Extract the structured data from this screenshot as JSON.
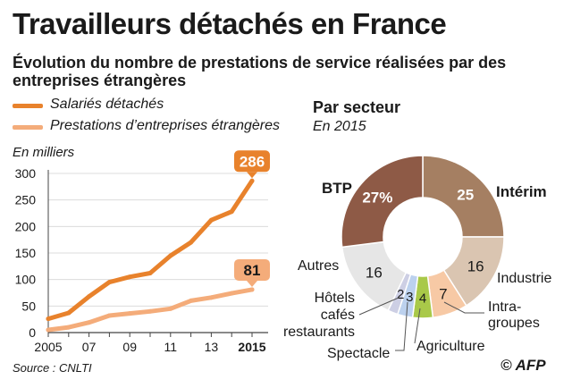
{
  "title": "Travailleurs détachés en France",
  "subtitle": "Évolution du nombre de prestations de service réalisées par des entreprises étrangères",
  "colors": {
    "dark_orange": "#e8822c",
    "light_orange": "#f4ac7a",
    "axis": "#444444",
    "grid": "#dcdcdc"
  },
  "source": "Source : CNLTI",
  "credit": "© AFP",
  "chart_data": [
    {
      "type": "line",
      "ylabel": "En milliers",
      "ylim": [
        0,
        300
      ],
      "yticks": [
        0,
        50,
        100,
        150,
        200,
        250,
        300
      ],
      "xlim": [
        2005,
        2015
      ],
      "x": [
        2005,
        2006,
        2007,
        2008,
        2009,
        2010,
        2011,
        2012,
        2013,
        2014,
        2015
      ],
      "xtick_labels": [
        {
          "x": 2005,
          "label": "2005",
          "bold": false
        },
        {
          "x": 2007,
          "label": "07",
          "bold": false
        },
        {
          "x": 2009,
          "label": "09",
          "bold": false
        },
        {
          "x": 2011,
          "label": "11",
          "bold": false
        },
        {
          "x": 2013,
          "label": "13",
          "bold": false
        },
        {
          "x": 2015,
          "label": "2015",
          "bold": true
        }
      ],
      "grid": true,
      "series": [
        {
          "name": "Salariés détachés",
          "color": "#e8822c",
          "values": [
            26,
            37,
            68,
            95,
            105,
            112,
            145,
            170,
            212,
            228,
            286
          ],
          "end_label": "286"
        },
        {
          "name": "Prestations d’entreprises étrangères",
          "color": "#f4ac7a",
          "values": [
            5,
            10,
            19,
            32,
            36,
            40,
            45,
            60,
            66,
            74,
            81
          ],
          "end_label": "81"
        }
      ]
    },
    {
      "type": "pie",
      "title": "Par secteur",
      "subtitle": "En 2015",
      "slices": [
        {
          "name": "Intérim",
          "value": 25,
          "label": "25",
          "color": "#a57f62",
          "label_color": "#ffffff"
        },
        {
          "name": "Industrie",
          "value": 16,
          "label": "16",
          "color": "#dac5b1",
          "label_color": "#1a1a1a"
        },
        {
          "name": "Intra-groupes",
          "value": 7,
          "label": "7",
          "color": "#f7c9a5",
          "label_color": "#1a1a1a"
        },
        {
          "name": "Agriculture",
          "value": 4,
          "label": "4",
          "color": "#a9c949",
          "label_color": "#1a1a1a"
        },
        {
          "name": "Spectacle",
          "value": 3,
          "label": "3",
          "color": "#bcd1ee",
          "label_color": "#1a1a1a"
        },
        {
          "name": "Hôtels cafés restaurants",
          "value": 2,
          "label": "2",
          "color": "#cdcfe4",
          "label_color": "#1a1a1a"
        },
        {
          "name": "Autres",
          "value": 16,
          "label": "16",
          "color": "#e6e6e6",
          "label_color": "#1a1a1a"
        },
        {
          "name": "BTP",
          "value": 27,
          "label": "27%",
          "color": "#8e5a46",
          "label_color": "#ffffff"
        }
      ],
      "category_labels": {
        "interim": "Intérim",
        "industrie": "Industrie",
        "intra_1": "Intra-",
        "intra_2": "groupes",
        "agriculture": "Agriculture",
        "spectacle": "Spectacle",
        "hotels_1": "Hôtels",
        "hotels_2": "cafés",
        "hotels_3": "restaurants",
        "autres": "Autres",
        "btp": "BTP"
      }
    }
  ]
}
